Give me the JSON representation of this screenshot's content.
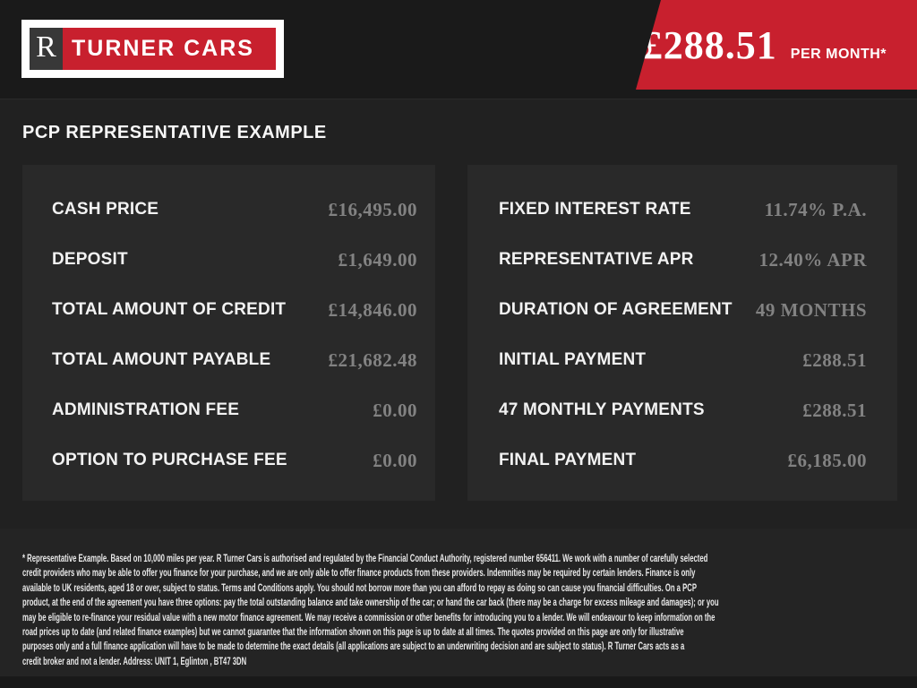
{
  "brand": {
    "letter": "R",
    "name": "TURNER CARS"
  },
  "header_banner": {
    "amount": "£288.51",
    "suffix": "PER MONTH*"
  },
  "page_title": "PCP REPRESENTATIVE EXAMPLE",
  "panels": {
    "left": [
      {
        "label": "CASH PRICE",
        "value": "£16,495.00"
      },
      {
        "label": "DEPOSIT",
        "value": "£1,649.00"
      },
      {
        "label": "TOTAL AMOUNT OF CREDIT",
        "value": "£14,846.00"
      },
      {
        "label": "TOTAL AMOUNT PAYABLE",
        "value": "£21,682.48"
      },
      {
        "label": "ADMINISTRATION FEE",
        "value": "£0.00"
      },
      {
        "label": "OPTION TO PURCHASE FEE",
        "value": "£0.00"
      }
    ],
    "right": [
      {
        "label": "FIXED INTEREST RATE",
        "value": "11.74% P.A."
      },
      {
        "label": "REPRESENTATIVE APR",
        "value": "12.40% APR"
      },
      {
        "label": "DURATION OF AGREEMENT",
        "value": "49 MONTHS"
      },
      {
        "label": "INITIAL PAYMENT",
        "value": "£288.51"
      },
      {
        "label": "47 MONTHLY PAYMENTS",
        "value": "£288.51"
      },
      {
        "label": "FINAL PAYMENT",
        "value": "£6,185.00"
      }
    ]
  },
  "disclaimer": {
    "lines": [
      "* Representative Example. Based on 10,000 miles per year. R Turner Cars is authorised and regulated by the Financial Conduct Authority, registered number 656411. We work with a number of carefully selected",
      "credit providers who may be able to offer you finance for your purchase, and we are only able to offer finance products from these providers. Indemnities may be required by certain lenders. Finance is only",
      "available to UK residents, aged 18 or over, subject to status. Terms and Conditions apply. You should not borrow more than you can afford to repay as doing so can cause you financial difficulties. On a PCP",
      "product, at the end of the agreement you have three options: pay the total outstanding balance and take ownership of the car; or hand the car back (there may be a charge for excess mileage and damages); or you",
      "may be eligible to re-finance your residual value with a new motor finance agreement. We may receive a commission or other benefits for introducing you to a lender. We will endeavour to keep information on the",
      "road prices up to date (and related finance examples) but we cannot guarantee that the information shown on this page is up to date at all times. The quotes provided on this page are only for illustrative",
      "purposes only and a full finance application will have to be made to determine the exact details (all applications are subject to an underwriting decision and are subject to status). R Turner Cars acts as a",
      "credit broker and not a lender. Address: UNIT 1, Eglinton , BT47 3DN"
    ]
  },
  "colors": {
    "accent_red": "#c8202e",
    "panel_background": "#292929",
    "value_text": "#828282",
    "label_text": "#f2f2f2"
  }
}
